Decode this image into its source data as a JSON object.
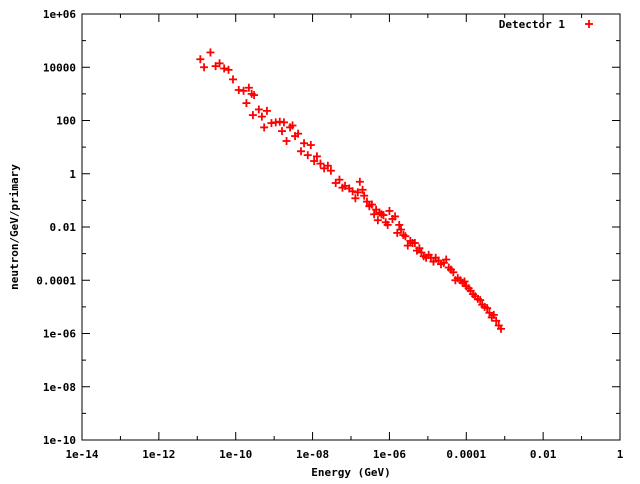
{
  "chart_data": {
    "type": "scatter",
    "title": "",
    "xlabel": "Energy (GeV)",
    "ylabel": "neutron/GeV/primary",
    "x_scale": "log",
    "y_scale": "log",
    "xlim": [
      1e-14,
      1
    ],
    "ylim": [
      1e-10,
      1000000.0
    ],
    "grid": false,
    "legend_position": "top-right",
    "x_ticks": [
      {
        "value": 1e-14,
        "label": "1e-14"
      },
      {
        "value": 1e-12,
        "label": "1e-12"
      },
      {
        "value": 1e-10,
        "label": "1e-10"
      },
      {
        "value": 1e-08,
        "label": "1e-08"
      },
      {
        "value": 1e-06,
        "label": "1e-06"
      },
      {
        "value": 0.0001,
        "label": "0.0001"
      },
      {
        "value": 0.01,
        "label": "0.01"
      },
      {
        "value": 1,
        "label": "1"
      }
    ],
    "y_ticks": [
      {
        "value": 1000000.0,
        "label": "1e+06"
      },
      {
        "value": 10000.0,
        "label": "10000"
      },
      {
        "value": 100.0,
        "label": "100"
      },
      {
        "value": 1,
        "label": "1"
      },
      {
        "value": 0.01,
        "label": "0.01"
      },
      {
        "value": 0.0001,
        "label": "0.0001"
      },
      {
        "value": 1e-06,
        "label": "1e-06"
      },
      {
        "value": 1e-08,
        "label": "1e-08"
      },
      {
        "value": 1e-10,
        "label": "1e-10"
      }
    ],
    "series": [
      {
        "name": "Detector 1",
        "color": "#ff0000",
        "marker": "plus",
        "points": [
          [
            1.2e-11,
            20000
          ],
          [
            1.5e-11,
            10000
          ],
          [
            2.2e-11,
            36000
          ],
          [
            3e-11,
            11000
          ],
          [
            3.8e-11,
            14000
          ],
          [
            5e-11,
            9000
          ],
          [
            6.5e-11,
            8000
          ],
          [
            8.5e-11,
            3500
          ],
          [
            1.2e-10,
            1400
          ],
          [
            1.6e-10,
            1300
          ],
          [
            1.9e-10,
            450
          ],
          [
            2.2e-10,
            1700
          ],
          [
            2.6e-10,
            1000
          ],
          [
            3e-10,
            900
          ],
          [
            2.8e-10,
            160
          ],
          [
            4e-10,
            260
          ],
          [
            4.8e-10,
            140
          ],
          [
            5.5e-10,
            55
          ],
          [
            6.5e-10,
            230
          ],
          [
            8.5e-10,
            80
          ],
          [
            1.1e-09,
            85
          ],
          [
            1.4e-09,
            90
          ],
          [
            1.6e-09,
            40
          ],
          [
            1.8e-09,
            85
          ],
          [
            2.1e-09,
            17
          ],
          [
            2.6e-09,
            55
          ],
          [
            3e-09,
            65
          ],
          [
            3.5e-09,
            26
          ],
          [
            4.2e-09,
            32
          ],
          [
            5e-09,
            7
          ],
          [
            6e-09,
            14
          ],
          [
            7.5e-09,
            5
          ],
          [
            9e-09,
            12
          ],
          [
            1.1e-08,
            3
          ],
          [
            1.3e-08,
            4.5
          ],
          [
            1.6e-08,
            2.4
          ],
          [
            2e-08,
            1.6
          ],
          [
            2.5e-08,
            2
          ],
          [
            3e-08,
            1.3
          ],
          [
            4e-08,
            0.45
          ],
          [
            5e-08,
            0.6
          ],
          [
            6e-08,
            0.3
          ],
          [
            7e-08,
            0.35
          ],
          [
            9e-08,
            0.28
          ],
          [
            1.1e-07,
            0.22
          ],
          [
            1.3e-07,
            0.12
          ],
          [
            1.5e-07,
            0.2
          ],
          [
            1.7e-07,
            0.5
          ],
          [
            2e-07,
            0.25
          ],
          [
            2.2e-07,
            0.15
          ],
          [
            2.6e-07,
            0.09
          ],
          [
            3e-07,
            0.06
          ],
          [
            3.5e-07,
            0.07
          ],
          [
            4e-07,
            0.03
          ],
          [
            4.5e-07,
            0.045
          ],
          [
            5e-07,
            0.018
          ],
          [
            5.5e-07,
            0.035
          ],
          [
            6.2e-07,
            0.03
          ],
          [
            7e-07,
            0.028
          ],
          [
            8e-07,
            0.015
          ],
          [
            9e-07,
            0.012
          ],
          [
            1e-06,
            0.04
          ],
          [
            1.2e-06,
            0.02
          ],
          [
            1.4e-06,
            0.025
          ],
          [
            1.6e-06,
            0.006
          ],
          [
            1.8e-06,
            0.012
          ],
          [
            2e-06,
            0.008
          ],
          [
            2.3e-06,
            0.005
          ],
          [
            2.6e-06,
            0.0045
          ],
          [
            3e-06,
            0.002
          ],
          [
            3.5e-06,
            0.003
          ],
          [
            4e-06,
            0.0025
          ],
          [
            4.6e-06,
            0.0025
          ],
          [
            5.2e-06,
            0.0013
          ],
          [
            6e-06,
            0.0016
          ],
          [
            6.8e-06,
            0.0011
          ],
          [
            7.8e-06,
            0.0008
          ],
          [
            9e-06,
            0.0007
          ],
          [
            1.05e-05,
            0.0009
          ],
          [
            1.2e-05,
            0.0007
          ],
          [
            1.4e-05,
            0.0005
          ],
          [
            1.6e-05,
            0.0007
          ],
          [
            1.9e-05,
            0.00055
          ],
          [
            2.2e-05,
            0.0004
          ],
          [
            2.6e-05,
            0.00045
          ],
          [
            3e-05,
            0.0006
          ],
          [
            3.5e-05,
            0.0003
          ],
          [
            4e-05,
            0.00025
          ],
          [
            4.6e-05,
            0.0002
          ],
          [
            5.2e-05,
            0.0001
          ],
          [
            6e-05,
            0.00012
          ],
          [
            7e-05,
            0.0001
          ],
          [
            8e-05,
            8e-05
          ],
          [
            9e-05,
            9e-05
          ],
          [
            0.0001,
            6e-05
          ],
          [
            0.000115,
            5e-05
          ],
          [
            0.00013,
            4e-05
          ],
          [
            0.00015,
            3e-05
          ],
          [
            0.00017,
            2.5e-05
          ],
          [
            0.0002,
            2e-05
          ],
          [
            0.00023,
            1.8e-05
          ],
          [
            0.00026,
            1.2e-05
          ],
          [
            0.0003,
            1e-05
          ],
          [
            0.00035,
            9e-06
          ],
          [
            0.0004,
            6e-06
          ],
          [
            0.00046,
            4e-06
          ],
          [
            0.00052,
            5e-06
          ],
          [
            0.0006,
            3e-06
          ],
          [
            0.0007,
            2e-06
          ],
          [
            0.0008,
            1.5e-06
          ]
        ]
      }
    ]
  }
}
